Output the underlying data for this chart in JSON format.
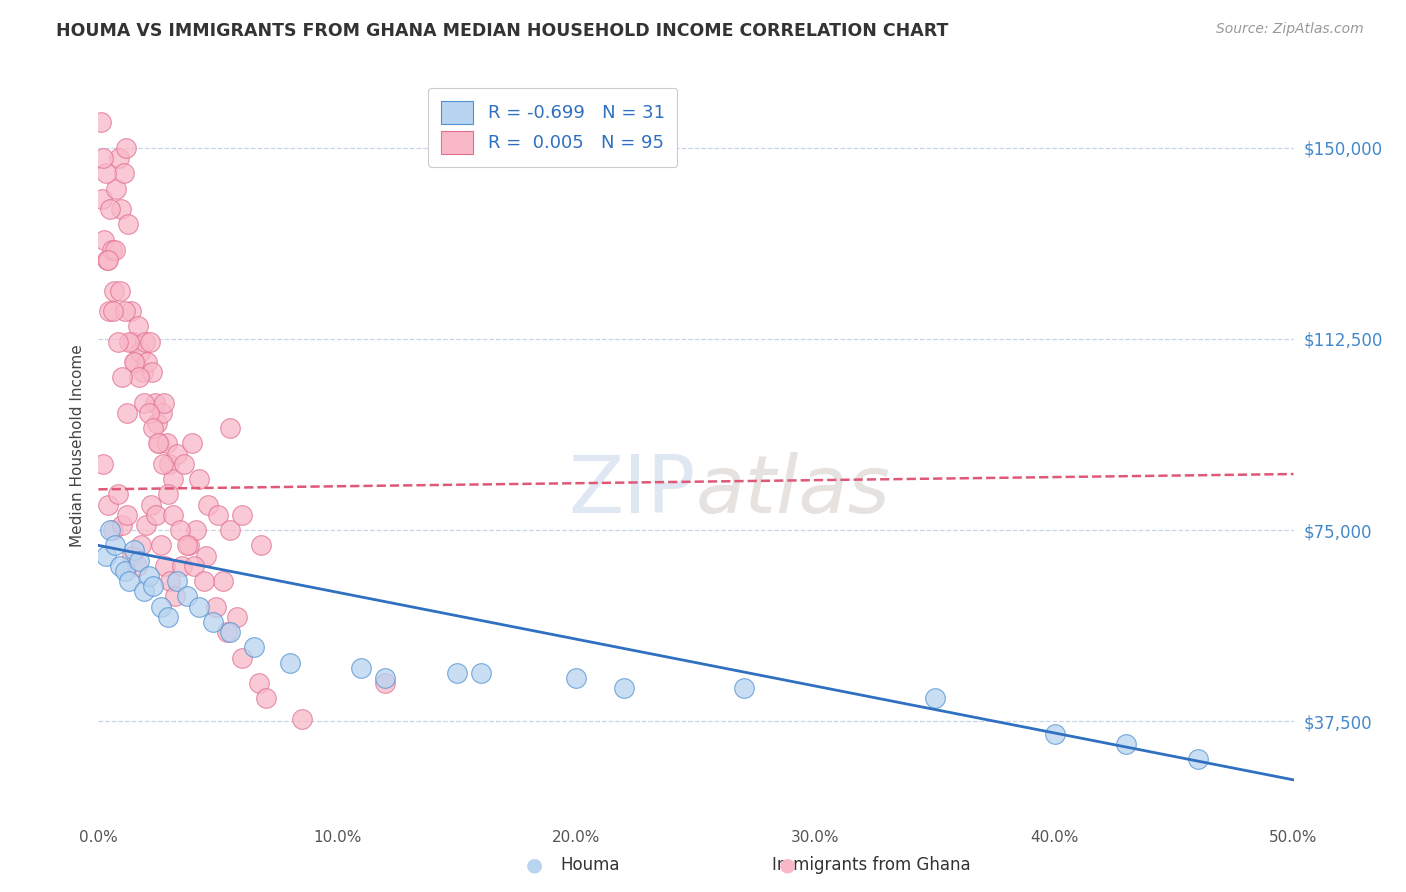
{
  "title": "HOUMA VS IMMIGRANTS FROM GHANA MEDIAN HOUSEHOLD INCOME CORRELATION CHART",
  "source": "Source: ZipAtlas.com",
  "ylabel": "Median Household Income",
  "xlim": [
    0.0,
    50.0
  ],
  "ylim": [
    18000,
    165000
  ],
  "yticks": [
    37500,
    75000,
    112500,
    150000
  ],
  "ytick_labels": [
    "$37,500",
    "$75,000",
    "$112,500",
    "$150,000"
  ],
  "xticks": [
    0,
    10,
    20,
    30,
    40,
    50
  ],
  "xtick_labels": [
    "0.0%",
    "10.0%",
    "20.0%",
    "30.0%",
    "40.0%",
    "50.0%"
  ],
  "houma_R": -0.699,
  "houma_N": 31,
  "ghana_R": 0.005,
  "ghana_N": 95,
  "houma_color": "#b8d4f0",
  "houma_edge_color": "#5090d0",
  "houma_line_color": "#3070c0",
  "ghana_color": "#f8b8c8",
  "ghana_edge_color": "#e07090",
  "ghana_line_color": "#e05878",
  "watermark": "ZIPatlas",
  "background_color": "#ffffff",
  "grid_color": "#c8d4e8",
  "houma_x": [
    0.3,
    0.5,
    0.7,
    0.9,
    1.1,
    1.3,
    1.5,
    1.7,
    1.9,
    2.1,
    2.3,
    2.6,
    2.9,
    3.3,
    3.7,
    4.2,
    4.8,
    5.5,
    6.5,
    8.0,
    11.0,
    15.0,
    20.0,
    27.0,
    35.0,
    40.0,
    43.0,
    46.0,
    12.0,
    16.0,
    22.0
  ],
  "houma_y": [
    70000,
    75000,
    72000,
    68000,
    67000,
    65000,
    71000,
    69000,
    63000,
    66000,
    64000,
    60000,
    58000,
    65000,
    62000,
    60000,
    57000,
    55000,
    52000,
    49000,
    48000,
    47000,
    46000,
    44000,
    42000,
    35000,
    33000,
    30000,
    46000,
    47000,
    44000
  ],
  "ghana_x": [
    0.15,
    0.25,
    0.35,
    0.45,
    0.55,
    0.65,
    0.75,
    0.85,
    0.95,
    1.05,
    1.15,
    1.25,
    1.35,
    1.45,
    1.55,
    1.65,
    1.75,
    1.85,
    1.95,
    2.05,
    2.15,
    2.25,
    2.35,
    2.45,
    2.55,
    2.65,
    2.75,
    2.85,
    2.95,
    3.1,
    3.3,
    3.6,
    3.9,
    4.2,
    4.6,
    5.0,
    5.5,
    6.0,
    6.8,
    0.2,
    0.4,
    0.6,
    0.8,
    1.0,
    1.2,
    1.4,
    1.6,
    1.8,
    2.0,
    2.2,
    2.4,
    2.6,
    2.8,
    3.0,
    3.2,
    3.5,
    3.8,
    4.1,
    4.5,
    5.2,
    5.8,
    0.3,
    0.5,
    0.7,
    0.9,
    1.1,
    1.3,
    1.5,
    1.7,
    1.9,
    2.1,
    2.3,
    2.5,
    2.7,
    2.9,
    3.1,
    3.4,
    3.7,
    4.0,
    4.4,
    4.9,
    5.4,
    6.0,
    6.7,
    0.1,
    0.2,
    0.4,
    0.6,
    0.8,
    1.0,
    1.2,
    7.0,
    8.5,
    12.0,
    5.5
  ],
  "ghana_y": [
    140000,
    132000,
    128000,
    118000,
    130000,
    122000,
    142000,
    148000,
    138000,
    145000,
    150000,
    135000,
    118000,
    112000,
    108000,
    115000,
    110000,
    106000,
    112000,
    108000,
    112000,
    106000,
    100000,
    96000,
    92000,
    98000,
    100000,
    92000,
    88000,
    85000,
    90000,
    88000,
    92000,
    85000,
    80000,
    78000,
    75000,
    78000,
    72000,
    88000,
    80000,
    75000,
    82000,
    76000,
    78000,
    70000,
    68000,
    72000,
    76000,
    80000,
    78000,
    72000,
    68000,
    65000,
    62000,
    68000,
    72000,
    75000,
    70000,
    65000,
    58000,
    145000,
    138000,
    130000,
    122000,
    118000,
    112000,
    108000,
    105000,
    100000,
    98000,
    95000,
    92000,
    88000,
    82000,
    78000,
    75000,
    72000,
    68000,
    65000,
    60000,
    55000,
    50000,
    45000,
    155000,
    148000,
    128000,
    118000,
    112000,
    105000,
    98000,
    42000,
    38000,
    45000,
    95000
  ],
  "ghana_trend_y0": 83000,
  "ghana_trend_y1": 86000,
  "houma_trend_y0": 72000,
  "houma_trend_y1": 26000
}
